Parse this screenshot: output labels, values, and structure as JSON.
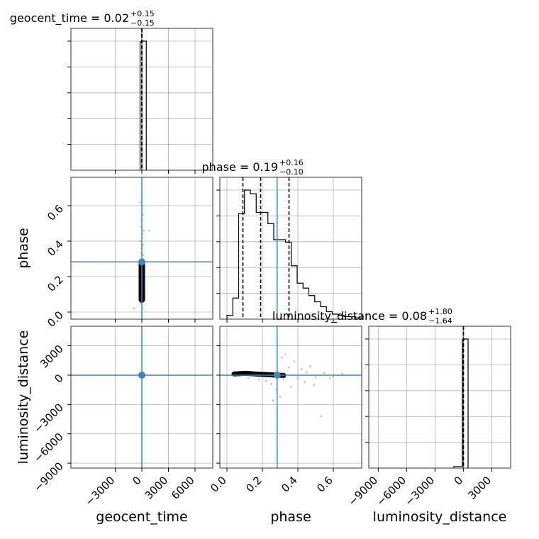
{
  "chart_data": {
    "type": "corner",
    "colors": {
      "truth": "#4682b4",
      "hist": "#000000",
      "points": "#999999",
      "grid": "#b0b0b0"
    },
    "parameters": [
      {
        "name": "geocent_time",
        "label": "geocent_time",
        "range": [
          -8000,
          8000
        ],
        "ticks": [
          -3000,
          0,
          3000,
          6000
        ],
        "tick_labels": [
          "−3000",
          "0",
          "3000",
          "6000"
        ],
        "truth": 0,
        "title": {
          "prefix": "geocent_time = 0.02",
          "sup": "+0.15",
          "sub": "−0.15"
        },
        "quantiles": [
          -0.13,
          0.02,
          0.17
        ],
        "hist": {
          "edges": [
            -200,
            0,
            500
          ],
          "counts": [
            0.995,
            1.0
          ],
          "max": 1.0
        }
      },
      {
        "name": "phase",
        "label": "phase",
        "range": [
          -0.04,
          0.76
        ],
        "ticks": [
          0.0,
          0.2,
          0.4,
          0.6
        ],
        "tick_labels": [
          "0.0",
          "0.2",
          "0.4",
          "0.6"
        ],
        "truth": 0.283,
        "title": {
          "prefix": "phase = 0.19",
          "sup": "+0.16",
          "sub": "−0.10"
        },
        "quantiles": [
          0.09,
          0.19,
          0.35
        ],
        "hist": {
          "edges": [
            0.0,
            0.033,
            0.066,
            0.099,
            0.132,
            0.165,
            0.198,
            0.231,
            0.264,
            0.297,
            0.33,
            0.363,
            0.396,
            0.429,
            0.462,
            0.495,
            0.528,
            0.561,
            0.594,
            0.627,
            0.66,
            0.693,
            0.726,
            0.76
          ],
          "counts": [
            3,
            17,
            85,
            104,
            101,
            86,
            86,
            77,
            64,
            64,
            62,
            43,
            29,
            25,
            19,
            14,
            10,
            6,
            4,
            3,
            2,
            2,
            1
          ],
          "max": 104
        }
      },
      {
        "name": "luminosity_distance",
        "label": "luminosity_distance",
        "range": [
          -10000,
          5000
        ],
        "ticks": [
          -9000,
          -6000,
          -3000,
          0,
          3000
        ],
        "tick_labels": [
          "−9000",
          "−6000",
          "−3000",
          "0",
          "3000"
        ],
        "truth": 0,
        "title": {
          "prefix": "luminosity_distance = 0.08",
          "sup": "+1.80",
          "sub": "−1.64"
        },
        "quantiles": [
          -1.56,
          0.08,
          1.88
        ],
        "hist": {
          "edges": [
            -1000,
            -100,
            100,
            500
          ],
          "counts": [
            0.012,
            0.995,
            1.0
          ],
          "max": 1.0
        }
      }
    ],
    "y_axes": {
      "phase": {
        "range": [
          -0.04,
          0.76
        ],
        "ticks": [
          0.0,
          0.2,
          0.4,
          0.6
        ],
        "tick_labels": [
          "0.0",
          "0.2",
          "0.4",
          "0.6"
        ]
      },
      "luminosity_distance": {
        "range": [
          -9500,
          5000
        ],
        "ticks": [
          -9000,
          -6000,
          -3000,
          0,
          3000
        ],
        "tick_labels": [
          "−9000",
          "−6000",
          "−3000",
          "0",
          "3000"
        ]
      }
    },
    "scatter": {
      "geocent_time_vs_phase": {
        "core": [
          [
            0,
            0.07
          ],
          [
            0,
            0.11
          ],
          [
            0,
            0.14
          ],
          [
            0,
            0.17
          ],
          [
            0,
            0.2
          ],
          [
            0,
            0.24
          ],
          [
            0,
            0.28
          ]
        ],
        "points": [
          [
            -150,
            0.62
          ],
          [
            120,
            0.55
          ],
          [
            -80,
            0.48
          ],
          [
            200,
            0.46
          ],
          [
            -200,
            0.4
          ],
          [
            100,
            0.38
          ],
          [
            -50,
            0.33
          ],
          [
            150,
            0.32
          ],
          [
            -120,
            0.05
          ],
          [
            80,
            0.02
          ],
          [
            -250,
            0.12
          ],
          [
            260,
            0.1
          ],
          [
            -900,
            0.02
          ],
          [
            800,
            0.46
          ],
          [
            40,
            0.6
          ],
          [
            -30,
            0.52
          ],
          [
            60,
            0.44
          ],
          [
            -60,
            0.36
          ]
        ]
      },
      "geocent_time_vs_luminosity_distance": {
        "core": [
          [
            0,
            -60
          ],
          [
            0,
            0
          ],
          [
            0,
            60
          ]
        ],
        "points": [
          [
            -80,
            80
          ],
          [
            120,
            -100
          ],
          [
            -140,
            -50
          ],
          [
            60,
            150
          ],
          [
            160,
            40
          ],
          [
            -40,
            -160
          ]
        ]
      },
      "phase_vs_luminosity_distance": {
        "core": [
          [
            0.04,
            120
          ],
          [
            0.07,
            150
          ],
          [
            0.1,
            190
          ],
          [
            0.13,
            160
          ],
          [
            0.16,
            120
          ],
          [
            0.19,
            90
          ],
          [
            0.22,
            60
          ],
          [
            0.25,
            30
          ],
          [
            0.28,
            0
          ],
          [
            0.32,
            -30
          ]
        ],
        "points": [
          [
            0.22,
            -600
          ],
          [
            0.25,
            -900
          ],
          [
            0.28,
            -1500
          ],
          [
            0.3,
            -2200
          ],
          [
            0.32,
            -400
          ],
          [
            0.35,
            800
          ],
          [
            0.38,
            1400
          ],
          [
            0.33,
            2100
          ],
          [
            0.4,
            -300
          ],
          [
            0.45,
            300
          ],
          [
            0.5,
            -200
          ],
          [
            0.55,
            200
          ],
          [
            0.6,
            -100
          ],
          [
            0.42,
            600
          ],
          [
            0.36,
            -1200
          ],
          [
            0.26,
            -2600
          ],
          [
            0.49,
            -1000
          ],
          [
            0.53,
            -4200
          ],
          [
            0.65,
            150
          ],
          [
            0.58,
            -350
          ],
          [
            0.44,
            -700
          ],
          [
            0.47,
            900
          ],
          [
            0.31,
            1800
          ],
          [
            0.18,
            -450
          ],
          [
            0.12,
            -300
          ]
        ]
      }
    }
  }
}
